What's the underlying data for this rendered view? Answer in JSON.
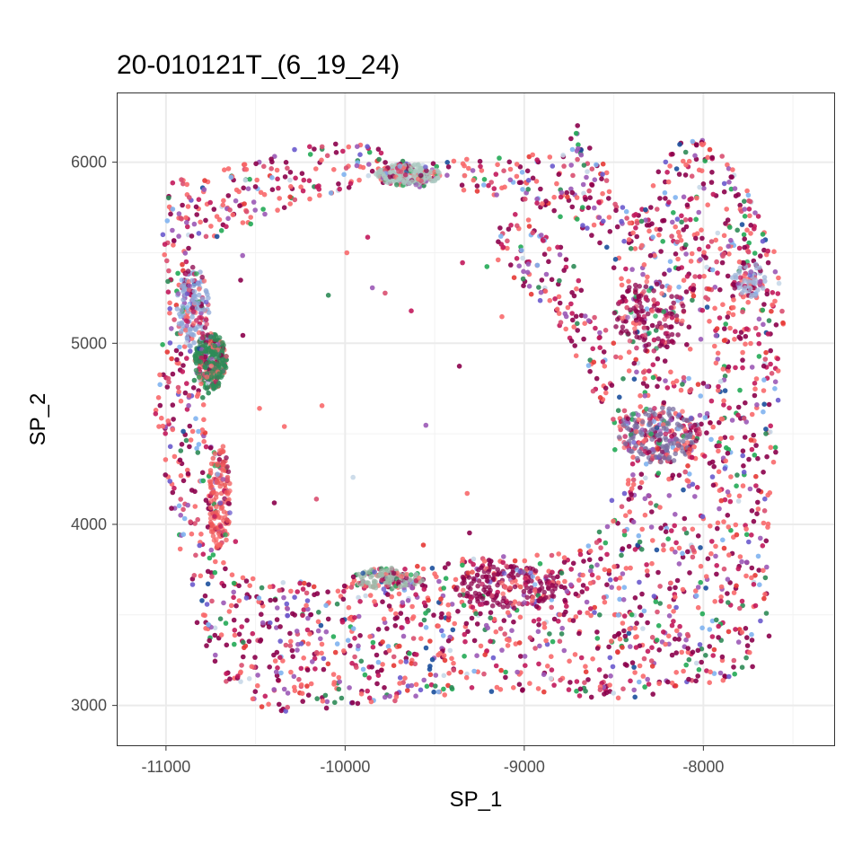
{
  "chart_data": {
    "type": "scatter",
    "title": "20-010121T_(6_19_24)",
    "xlabel": "SP_1",
    "ylabel": "SP_2",
    "xlim": [
      -11270,
      -7270
    ],
    "ylim": [
      2780,
      6380
    ],
    "xticks": [
      -11000,
      -10000,
      -9000,
      -8000
    ],
    "yticks": [
      3000,
      4000,
      5000,
      6000
    ],
    "xtick_labels": [
      "-11000",
      "-10000",
      "-9000",
      "-8000"
    ],
    "ytick_labels": [
      "3000",
      "4000",
      "5000",
      "6000"
    ],
    "grid": true,
    "legend": "none",
    "palette": [
      "#F8696B",
      "#8B004B",
      "#C2185B",
      "#D94F70",
      "#9B59B6",
      "#22AA55",
      "#7FB2F0",
      "#2E8B57",
      "#E53935",
      "#6A5ACD",
      "#C8D8E8",
      "#1B4F9C"
    ],
    "shape_outline": [
      [
        -10980,
        5900
      ],
      [
        -10800,
        5920
      ],
      [
        -10500,
        6010
      ],
      [
        -10200,
        6100
      ],
      [
        -9900,
        6110
      ],
      [
        -9600,
        5980
      ],
      [
        -9300,
        6020
      ],
      [
        -9000,
        6060
      ],
      [
        -8800,
        6050
      ],
      [
        -8700,
        6210
      ],
      [
        -8500,
        5900
      ],
      [
        -8400,
        5700
      ],
      [
        -8150,
        6130
      ],
      [
        -7950,
        6120
      ],
      [
        -7780,
        5900
      ],
      [
        -7600,
        5500
      ],
      [
        -7540,
        5100
      ],
      [
        -7580,
        4700
      ],
      [
        -7600,
        4300
      ],
      [
        -7640,
        3900
      ],
      [
        -7620,
        3420
      ],
      [
        -7700,
        3200
      ],
      [
        -7900,
        3120
      ],
      [
        -8100,
        3120
      ],
      [
        -8300,
        3050
      ],
      [
        -8500,
        3020
      ],
      [
        -8800,
        3050
      ],
      [
        -9000,
        3080
      ],
      [
        -9300,
        3060
      ],
      [
        -9700,
        3020
      ],
      [
        -10000,
        2980
      ],
      [
        -10300,
        2960
      ],
      [
        -10500,
        2980
      ],
      [
        -10700,
        3120
      ],
      [
        -10830,
        3420
      ],
      [
        -10930,
        3800
      ],
      [
        -11000,
        4200
      ],
      [
        -11060,
        4600
      ],
      [
        -11020,
        5000
      ],
      [
        -10990,
        5300
      ],
      [
        -11020,
        5600
      ],
      [
        -10980,
        5900
      ]
    ],
    "hole_outline": [
      [
        -10860,
        5470
      ],
      [
        -10700,
        5600
      ],
      [
        -10400,
        5700
      ],
      [
        -10100,
        5820
      ],
      [
        -9800,
        5860
      ],
      [
        -9550,
        5860
      ],
      [
        -9300,
        5840
      ],
      [
        -9000,
        5780
      ],
      [
        -8700,
        5650
      ],
      [
        -8550,
        5500
      ],
      [
        -8480,
        5300
      ],
      [
        -8440,
        5050
      ],
      [
        -8410,
        4800
      ],
      [
        -8440,
        4500
      ],
      [
        -8460,
        4200
      ],
      [
        -8520,
        4000
      ],
      [
        -8700,
        3880
      ],
      [
        -9000,
        3840
      ],
      [
        -9300,
        3830
      ],
      [
        -9600,
        3770
      ],
      [
        -9900,
        3730
      ],
      [
        -10200,
        3690
      ],
      [
        -10450,
        3680
      ],
      [
        -10640,
        3760
      ],
      [
        -10700,
        4000
      ],
      [
        -10730,
        4300
      ],
      [
        -10750,
        4700
      ],
      [
        -10760,
        5000
      ],
      [
        -10810,
        5250
      ],
      [
        -10860,
        5470
      ]
    ],
    "right_lobe_hole": [
      [
        -8180,
        5180
      ],
      [
        -8080,
        5220
      ],
      [
        -7980,
        5150
      ],
      [
        -7920,
        5000
      ],
      [
        -7950,
        4820
      ],
      [
        -8050,
        4780
      ],
      [
        -8170,
        4850
      ],
      [
        -8220,
        5000
      ],
      [
        -8180,
        5180
      ]
    ],
    "inner_arm_outline": [
      [
        -9150,
        5650
      ],
      [
        -9050,
        5750
      ],
      [
        -8900,
        5720
      ],
      [
        -8750,
        5500
      ],
      [
        -8650,
        5250
      ],
      [
        -8550,
        5100
      ],
      [
        -8400,
        4800
      ],
      [
        -8320,
        4500
      ],
      [
        -8500,
        4400
      ],
      [
        -8600,
        4700
      ],
      [
        -8750,
        5000
      ],
      [
        -8900,
        5200
      ],
      [
        -9050,
        5350
      ],
      [
        -9150,
        5450
      ],
      [
        -9150,
        5650
      ]
    ],
    "clusters": [
      {
        "center": [
          -10750,
          4900
        ],
        "radius": [
          90,
          160
        ],
        "count": 320,
        "color": "#2E8B57"
      },
      {
        "center": [
          -9650,
          5930
        ],
        "radius": [
          180,
          60
        ],
        "count": 260,
        "color": "#A9C8C0"
      },
      {
        "center": [
          -8250,
          4500
        ],
        "radius": [
          230,
          160
        ],
        "count": 220,
        "color": "#7B6FA0"
      },
      {
        "center": [
          -10850,
          5200
        ],
        "radius": [
          90,
          220
        ],
        "count": 150,
        "color": "#8FA8D8"
      },
      {
        "center": [
          -10700,
          4150
        ],
        "radius": [
          60,
          300
        ],
        "count": 160,
        "color": "#F05A5A"
      },
      {
        "center": [
          -8300,
          5150
        ],
        "radius": [
          200,
          200
        ],
        "count": 140,
        "color": "#8B004B"
      },
      {
        "center": [
          -7750,
          5350
        ],
        "radius": [
          100,
          100
        ],
        "count": 80,
        "color": "#9FB4D8"
      },
      {
        "center": [
          -9100,
          3650
        ],
        "radius": [
          300,
          120
        ],
        "count": 180,
        "color": "#8B004B"
      },
      {
        "center": [
          -9750,
          3700
        ],
        "radius": [
          200,
          60
        ],
        "count": 120,
        "color": "#9DB8A8"
      }
    ],
    "scattered_points": 2600
  }
}
